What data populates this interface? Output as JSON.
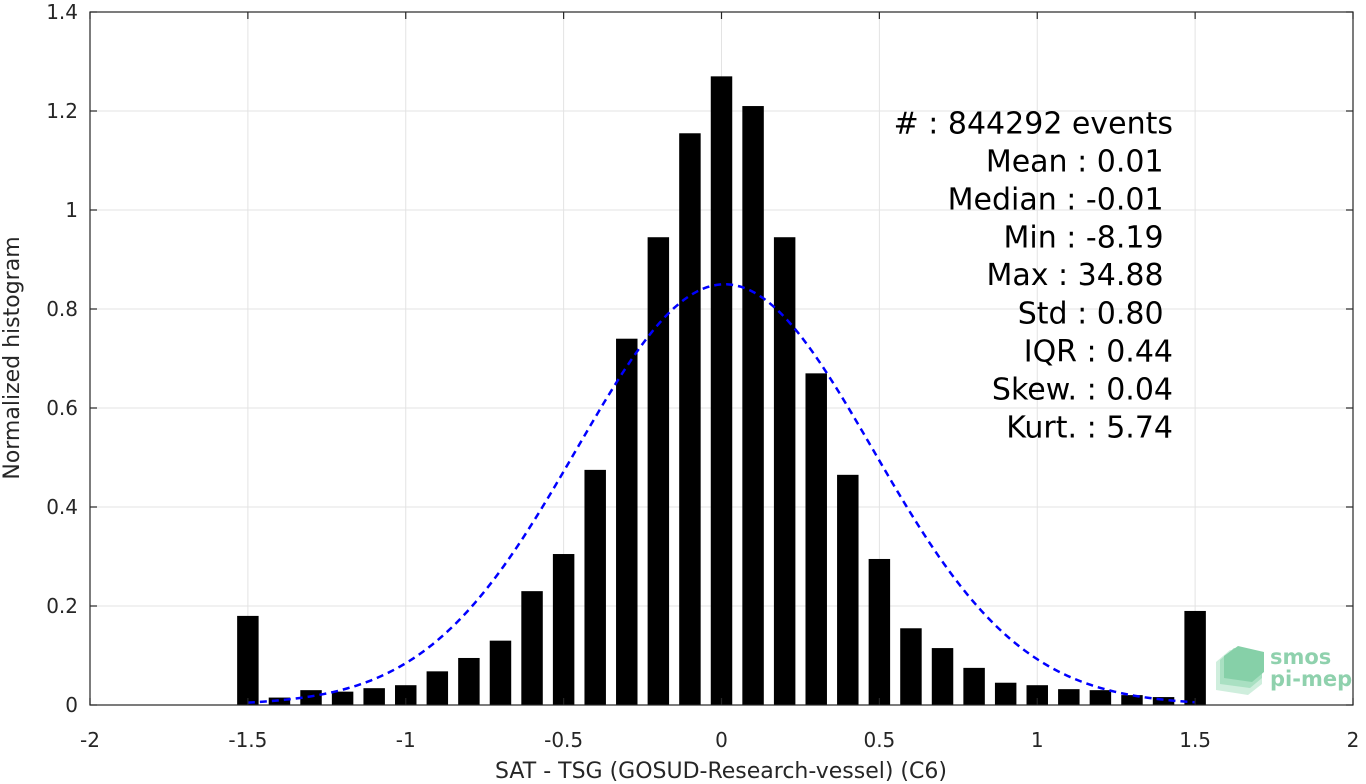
{
  "chart_data": {
    "type": "bar",
    "xlabel": "SAT - TSG (GOSUD-Research-vessel) (C6)",
    "ylabel": "Normalized histogram",
    "xlim": [
      -2,
      2
    ],
    "ylim": [
      0,
      1.4
    ],
    "xticks": [
      -2,
      -1.5,
      -1,
      -0.5,
      0,
      0.5,
      1,
      1.5,
      2
    ],
    "xtick_labels": [
      "-2",
      "-1.5",
      "-1",
      "-0.5",
      "0",
      "0.5",
      "1",
      "1.5",
      "2"
    ],
    "yticks": [
      0,
      0.2,
      0.4,
      0.6,
      0.8,
      1,
      1.2,
      1.4
    ],
    "ytick_labels": [
      "0",
      "0.2",
      "0.4",
      "0.6",
      "0.8",
      "1",
      "1.2",
      "1.4"
    ],
    "grid": true,
    "bar_color": "#000000",
    "bins": [
      {
        "x": -1.5,
        "value": 0.18
      },
      {
        "x": -1.4,
        "value": 0.015
      },
      {
        "x": -1.3,
        "value": 0.03
      },
      {
        "x": -1.2,
        "value": 0.027
      },
      {
        "x": -1.1,
        "value": 0.034
      },
      {
        "x": -1.0,
        "value": 0.04
      },
      {
        "x": -0.9,
        "value": 0.068
      },
      {
        "x": -0.8,
        "value": 0.095
      },
      {
        "x": -0.7,
        "value": 0.13
      },
      {
        "x": -0.6,
        "value": 0.23
      },
      {
        "x": -0.5,
        "value": 0.305
      },
      {
        "x": -0.4,
        "value": 0.475
      },
      {
        "x": -0.3,
        "value": 0.74
      },
      {
        "x": -0.2,
        "value": 0.945
      },
      {
        "x": -0.1,
        "value": 1.155
      },
      {
        "x": 0.0,
        "value": 1.27
      },
      {
        "x": 0.1,
        "value": 1.21
      },
      {
        "x": 0.2,
        "value": 0.945
      },
      {
        "x": 0.3,
        "value": 0.67
      },
      {
        "x": 0.4,
        "value": 0.465
      },
      {
        "x": 0.5,
        "value": 0.295
      },
      {
        "x": 0.6,
        "value": 0.155
      },
      {
        "x": 0.7,
        "value": 0.115
      },
      {
        "x": 0.8,
        "value": 0.075
      },
      {
        "x": 0.9,
        "value": 0.045
      },
      {
        "x": 1.0,
        "value": 0.04
      },
      {
        "x": 1.1,
        "value": 0.032
      },
      {
        "x": 1.2,
        "value": 0.03
      },
      {
        "x": 1.3,
        "value": 0.02
      },
      {
        "x": 1.4,
        "value": 0.016
      },
      {
        "x": 1.5,
        "value": 0.19
      }
    ],
    "bin_width": 0.1,
    "bar_fraction": 0.68,
    "fit_curve": {
      "type": "gaussian",
      "mean": 0.01,
      "std": 0.47,
      "peak": 0.85,
      "x_range": [
        -1.5,
        1.5
      ],
      "color": "#0000ff",
      "style": "dashed"
    },
    "annotations": [
      {
        "text": "#  : 844292 events",
        "x": 1.43,
        "y": 1.155
      },
      {
        "text": "Mean : 0.01",
        "x": 1.4,
        "y": 1.078
      },
      {
        "text": "Median : -0.01",
        "x": 1.4,
        "y": 1.001
      },
      {
        "text": "Min : -8.19",
        "x": 1.4,
        "y": 0.924
      },
      {
        "text": "Max : 34.88",
        "x": 1.4,
        "y": 0.848
      },
      {
        "text": "Std : 0.80",
        "x": 1.4,
        "y": 0.771
      },
      {
        "text": "IQR : 0.44",
        "x": 1.43,
        "y": 0.694
      },
      {
        "text": "Skew. : 0.04",
        "x": 1.43,
        "y": 0.617
      },
      {
        "text": "Kurt. : 5.74",
        "x": 1.43,
        "y": 0.54
      }
    ]
  },
  "logo": {
    "line1": "smos",
    "line2": "pi-mep"
  }
}
